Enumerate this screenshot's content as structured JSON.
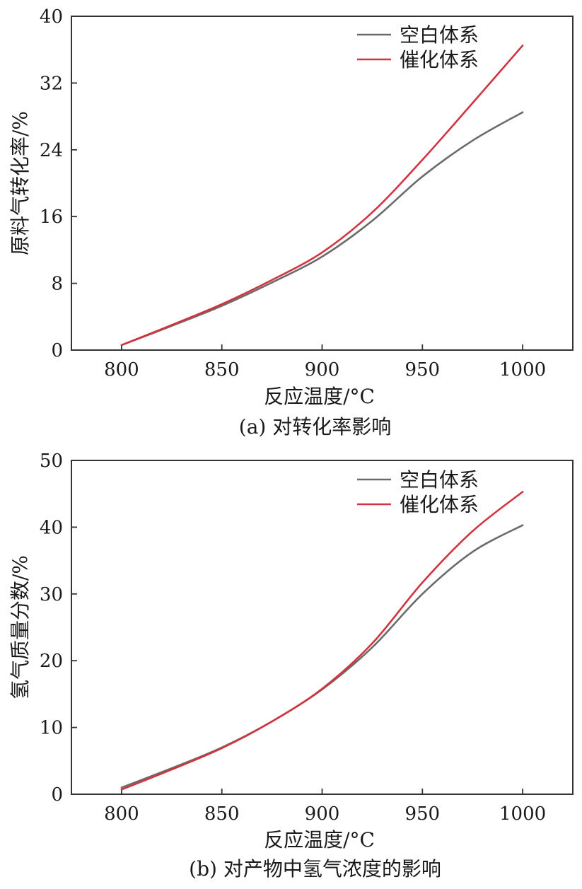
{
  "colors": {
    "blank": "#6b6b6b",
    "catalyst": "#d2343f",
    "axis": "#333333"
  },
  "chart_data": [
    {
      "type": "line",
      "caption": "(a) 对转化率影响",
      "xlabel": "反应温度/°C",
      "ylabel": "原料气转化率/%",
      "xlim": [
        775,
        1025
      ],
      "ylim": [
        0,
        40
      ],
      "xticks": [
        "800",
        "850",
        "900",
        "950",
        "1000"
      ],
      "yticks": [
        "0",
        "8",
        "16",
        "24",
        "32",
        "40"
      ],
      "legend_position": "top-right",
      "series": [
        {
          "name": "空白体系",
          "color_key": "blank",
          "x": [
            800,
            825,
            850,
            875,
            900,
            925,
            950,
            975,
            1000
          ],
          "y": [
            0.6,
            2.9,
            5.3,
            8.1,
            11.2,
            15.5,
            20.8,
            25.1,
            28.5
          ]
        },
        {
          "name": "催化体系",
          "color_key": "catalyst",
          "x": [
            800,
            825,
            850,
            875,
            900,
            925,
            950,
            975,
            1000
          ],
          "y": [
            0.6,
            3.0,
            5.5,
            8.4,
            11.7,
            16.5,
            22.8,
            29.6,
            36.5
          ]
        }
      ]
    },
    {
      "type": "line",
      "caption": "(b) 对产物中氢气浓度的影响",
      "xlabel": "反应温度/°C",
      "ylabel": "氢气质量分数/%",
      "xlim": [
        775,
        1025
      ],
      "ylim": [
        0,
        50
      ],
      "xticks": [
        "800",
        "850",
        "900",
        "950",
        "1000"
      ],
      "yticks": [
        "0",
        "10",
        "20",
        "30",
        "40",
        "50"
      ],
      "legend_position": "top-right",
      "series": [
        {
          "name": "空白体系",
          "color_key": "blank",
          "x": [
            800,
            825,
            850,
            875,
            900,
            925,
            950,
            975,
            1000
          ],
          "y": [
            1.0,
            3.9,
            7.0,
            10.9,
            15.7,
            22.0,
            30.0,
            36.3,
            40.3
          ]
        },
        {
          "name": "催化体系",
          "color_key": "catalyst",
          "x": [
            800,
            825,
            850,
            875,
            900,
            925,
            950,
            975,
            1000
          ],
          "y": [
            0.7,
            3.7,
            6.9,
            10.9,
            15.8,
            22.6,
            31.7,
            39.4,
            45.3
          ]
        }
      ]
    }
  ]
}
